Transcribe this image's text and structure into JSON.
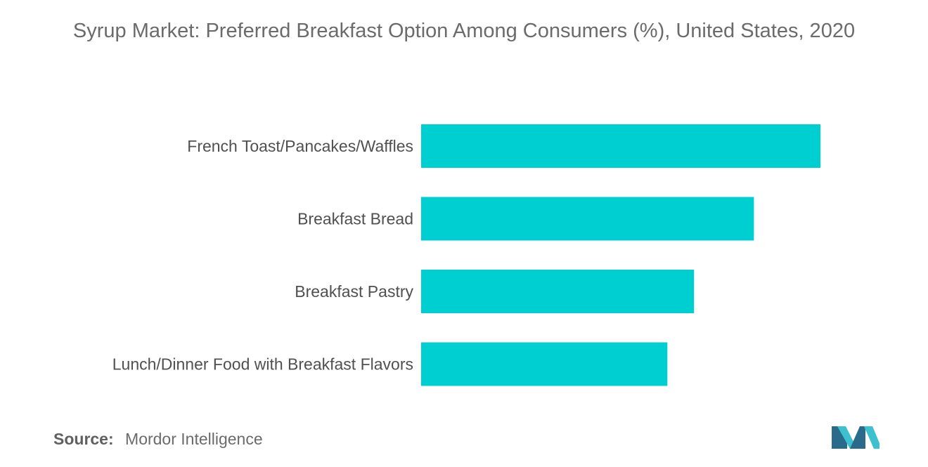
{
  "title": "Syrup Market: Preferred Breakfast Option Among Consumers (%), United States, 2020",
  "source": {
    "label": "Source:",
    "value": "Mordor Intelligence"
  },
  "logo": {
    "name": "mordor-intelligence-logo",
    "color_dark": "#2a6a8a",
    "color_light": "#3dc0d0"
  },
  "chart_data": {
    "type": "bar",
    "orientation": "horizontal",
    "categories": [
      "French Toast/Pancakes/Waffles",
      "Breakfast Bread",
      "Breakfast Pastry",
      "Lunch/Dinner Food with Breakfast Flavors"
    ],
    "values": [
      60,
      50,
      41,
      37
    ],
    "xlim": [
      0,
      62
    ],
    "bar_color": "#00cfd1",
    "grid": false,
    "legend": "none",
    "xlabel": "",
    "ylabel": ""
  }
}
